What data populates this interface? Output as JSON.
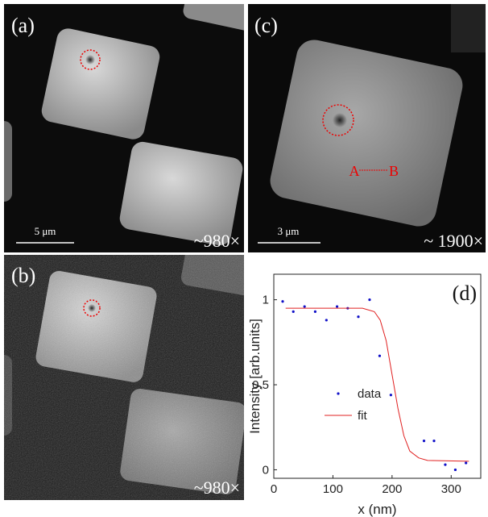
{
  "panels": [
    {
      "label": "(a)",
      "scale_bar": "5 μm",
      "magnification": "~980×"
    },
    {
      "label": "(b)",
      "magnification": "~980×"
    },
    {
      "label": "(c)",
      "scale_bar": "3 μm",
      "magnification": "~ 1900×",
      "annotations": [
        "A",
        "B"
      ]
    }
  ],
  "chart_data": {
    "type": "scatter",
    "label": "(d)",
    "xlabel": "x (nm)",
    "ylabel": "Intensity [arb.units]",
    "xlim": [
      0,
      350
    ],
    "ylim": [
      -0.05,
      1.15
    ],
    "xticks": [
      0,
      100,
      200,
      300
    ],
    "yticks": [
      0,
      0.5,
      1
    ],
    "series": [
      {
        "name": "data",
        "type": "scatter",
        "color": "#1010c8",
        "x": [
          15,
          33,
          52,
          70,
          89,
          107,
          125,
          143,
          162,
          179,
          198,
          254,
          271,
          290,
          307,
          325
        ],
        "values": [
          0.99,
          0.93,
          0.96,
          0.93,
          0.88,
          0.96,
          0.95,
          0.9,
          1.0,
          0.67,
          0.44,
          0.17,
          0.17,
          0.03,
          0.0,
          0.04
        ]
      },
      {
        "name": "fit",
        "type": "line",
        "color": "#e02020",
        "x": [
          20,
          150,
          170,
          180,
          190,
          200,
          210,
          220,
          230,
          245,
          260,
          330
        ],
        "values": [
          0.95,
          0.95,
          0.93,
          0.88,
          0.76,
          0.56,
          0.36,
          0.2,
          0.11,
          0.07,
          0.055,
          0.05
        ]
      }
    ]
  }
}
